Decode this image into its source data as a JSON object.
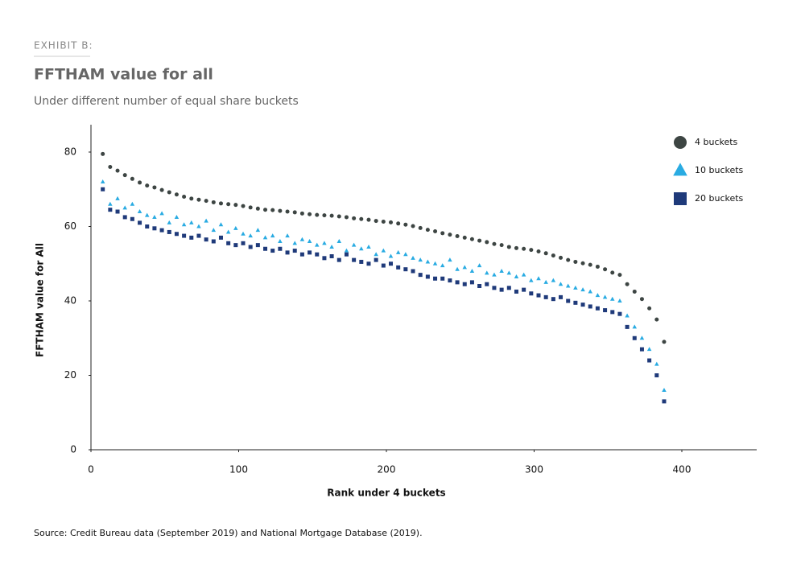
{
  "chart_data": {
    "type": "scatter",
    "label": "EXHIBIT B:",
    "title": "FFTHAM value for all",
    "subtitle": "Under different number of equal share buckets",
    "x_label": "Rank under 4 buckets",
    "y_label": "FFTHAM value for All",
    "source": "Source: Credit Bureau data (September 2019) and National Mortgage Database (2019).",
    "x": [
      8,
      13,
      18,
      23,
      28,
      33,
      38,
      43,
      48,
      53,
      58,
      63,
      68,
      73,
      78,
      83,
      88,
      93,
      98,
      103,
      108,
      113,
      118,
      123,
      128,
      133,
      138,
      143,
      148,
      153,
      158,
      163,
      168,
      173,
      178,
      183,
      188,
      193,
      198,
      203,
      208,
      213,
      218,
      223,
      228,
      233,
      238,
      243,
      248,
      253,
      258,
      263,
      268,
      273,
      278,
      283,
      288,
      293,
      298,
      303,
      308,
      313,
      318,
      323,
      328,
      333,
      338,
      343,
      348,
      353,
      358,
      363,
      368,
      373,
      378,
      383,
      388
    ],
    "series": [
      {
        "name": "4 buckets",
        "color": "#3d4543",
        "marker": "circle",
        "values": [
          79.5,
          76,
          75,
          73.8,
          72.8,
          71.8,
          71,
          70.5,
          69.8,
          69.2,
          68.6,
          68,
          67.5,
          67.2,
          66.9,
          66.5,
          66.2,
          66,
          65.8,
          65.5,
          65.1,
          64.8,
          64.5,
          64.4,
          64.2,
          64,
          63.8,
          63.5,
          63.3,
          63.1,
          63,
          62.9,
          62.7,
          62.5,
          62.2,
          62,
          61.8,
          61.5,
          61.3,
          61.1,
          60.8,
          60.5,
          60.1,
          59.6,
          59.1,
          58.7,
          58.2,
          57.8,
          57.4,
          57,
          56.6,
          56.2,
          55.8,
          55.3,
          55,
          54.5,
          54.2,
          54,
          53.7,
          53.3,
          52.8,
          52.2,
          51.6,
          51,
          50.5,
          50.1,
          49.7,
          49.2,
          48.5,
          47.6,
          47,
          44.5,
          42.5,
          40.5,
          38,
          35,
          29
        ]
      },
      {
        "name": "10 buckets",
        "color": "#29abe2",
        "marker": "triangle",
        "values": [
          72,
          66,
          67.5,
          65,
          66,
          64,
          63,
          62.5,
          63.5,
          61,
          62.5,
          60.5,
          61,
          60,
          61.5,
          59,
          60.5,
          58.5,
          59.5,
          58,
          57.5,
          59,
          57,
          57.5,
          56,
          57.5,
          55.5,
          56.5,
          56,
          55,
          55.5,
          54.5,
          56,
          53.5,
          55,
          54,
          54.5,
          52.5,
          53.5,
          52,
          53,
          52.5,
          51.5,
          51,
          50.5,
          50,
          49.5,
          51,
          48.5,
          49,
          48,
          49.5,
          47.5,
          47,
          48,
          47.5,
          46.5,
          47,
          45.5,
          46,
          45,
          45.5,
          44.5,
          44,
          43.5,
          43,
          42.5,
          41.5,
          41,
          40.5,
          40,
          36,
          33,
          30,
          27,
          23,
          16
        ]
      },
      {
        "name": "20 buckets",
        "color": "#1f3a7a",
        "marker": "square",
        "values": [
          70,
          64.5,
          64,
          62.5,
          62,
          61,
          60,
          59.5,
          59,
          58.5,
          58,
          57.5,
          57,
          57.5,
          56.5,
          56,
          57,
          55.5,
          55,
          55.5,
          54.5,
          55,
          54,
          53.5,
          54,
          53,
          53.5,
          52.5,
          53,
          52.5,
          51.5,
          52,
          51,
          52.5,
          51,
          50.5,
          50,
          51,
          49.5,
          50,
          49,
          48.5,
          48,
          47,
          46.5,
          46,
          46,
          45.5,
          45,
          44.5,
          45,
          44,
          44.5,
          43.5,
          43,
          43.5,
          42.5,
          43,
          42,
          41.5,
          41,
          40.5,
          41,
          40,
          39.5,
          39,
          38.5,
          38,
          37.5,
          37,
          36.5,
          33,
          30,
          27,
          24,
          20,
          13
        ]
      }
    ],
    "xlim": [
      0,
      450
    ],
    "ylim": [
      0,
      88
    ],
    "xticks": [
      0,
      100,
      200,
      300,
      400
    ],
    "yticks": [
      0,
      20,
      40,
      60,
      80
    ],
    "grid": false,
    "legend": "top-right"
  }
}
